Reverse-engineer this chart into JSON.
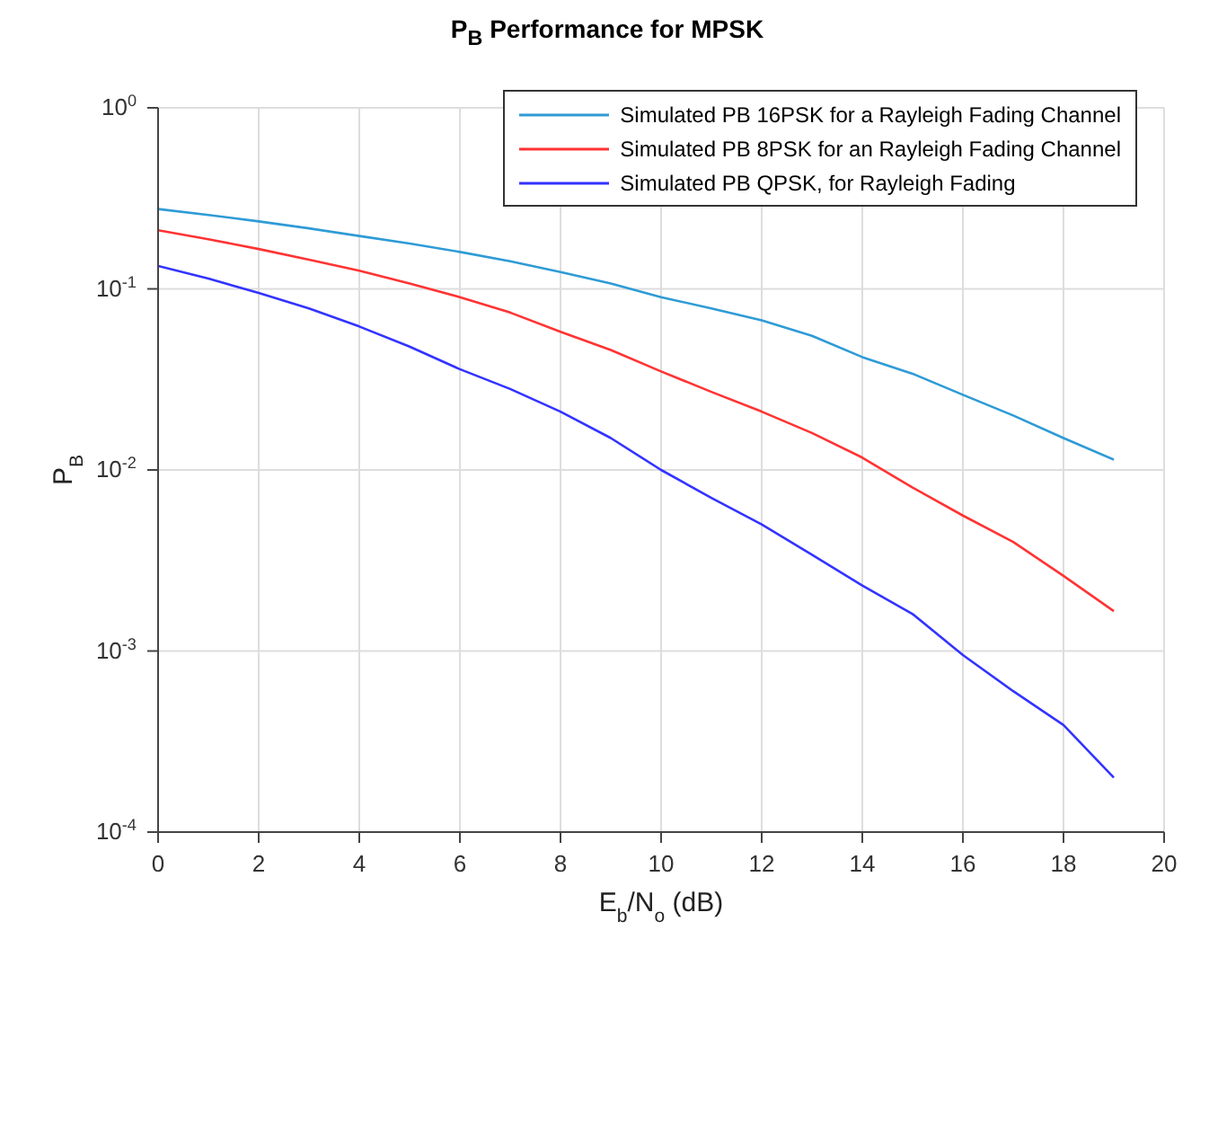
{
  "chart_data": {
    "type": "line",
    "title": "P$_{B}$ Performance for MPSK",
    "xlabel": "E$_{b}$/N$_{o}$ (dB)",
    "ylabel": "P$_{B}$",
    "x": [
      0,
      1,
      2,
      3,
      4,
      5,
      6,
      7,
      8,
      9,
      10,
      11,
      12,
      13,
      14,
      15,
      16,
      17,
      18,
      19
    ],
    "series": [
      {
        "name": "Simulated PB QPSK, for Rayleigh Fading",
        "color": "#3333ff",
        "values": [
          0.134,
          0.114,
          0.095,
          0.078,
          0.062,
          0.048,
          0.036,
          0.028,
          0.021,
          0.015,
          0.01,
          0.007,
          0.005,
          0.0034,
          0.0023,
          0.0016,
          0.00095,
          0.0006,
          0.00039,
          0.0002
        ]
      },
      {
        "name": "Simulated PB 8PSK for an Rayleigh Fading Channel",
        "color": "#ff3333",
        "values": [
          0.211,
          0.188,
          0.166,
          0.145,
          0.126,
          0.107,
          0.09,
          0.074,
          0.058,
          0.046,
          0.035,
          0.027,
          0.021,
          0.016,
          0.0117,
          0.008,
          0.0056,
          0.004,
          0.0026,
          0.00166
        ]
      },
      {
        "name": "Simulated PB 16PSK for a Rayleigh Fading Channel",
        "color": "#2e9bd6",
        "values": [
          0.276,
          0.256,
          0.236,
          0.216,
          0.196,
          0.178,
          0.16,
          0.142,
          0.124,
          0.107,
          0.09,
          0.078,
          0.067,
          0.055,
          0.042,
          0.034,
          0.026,
          0.02,
          0.015,
          0.0114
        ]
      }
    ],
    "xlim": [
      0,
      20
    ],
    "xticks": [
      0,
      2,
      4,
      6,
      8,
      10,
      12,
      14,
      16,
      18,
      20
    ],
    "ylim": [
      0.0001,
      1
    ],
    "yticks": [
      {
        "value": 0.0001,
        "label": "10$^{-4}$"
      },
      {
        "value": 0.001,
        "label": "10$^{-3}$"
      },
      {
        "value": 0.01,
        "label": "10$^{-2}$"
      },
      {
        "value": 0.1,
        "label": "10$^{-1}$"
      },
      {
        "value": 1,
        "label": "10$^{0}$"
      }
    ],
    "log": "y",
    "grid": true,
    "legend": "top right"
  }
}
